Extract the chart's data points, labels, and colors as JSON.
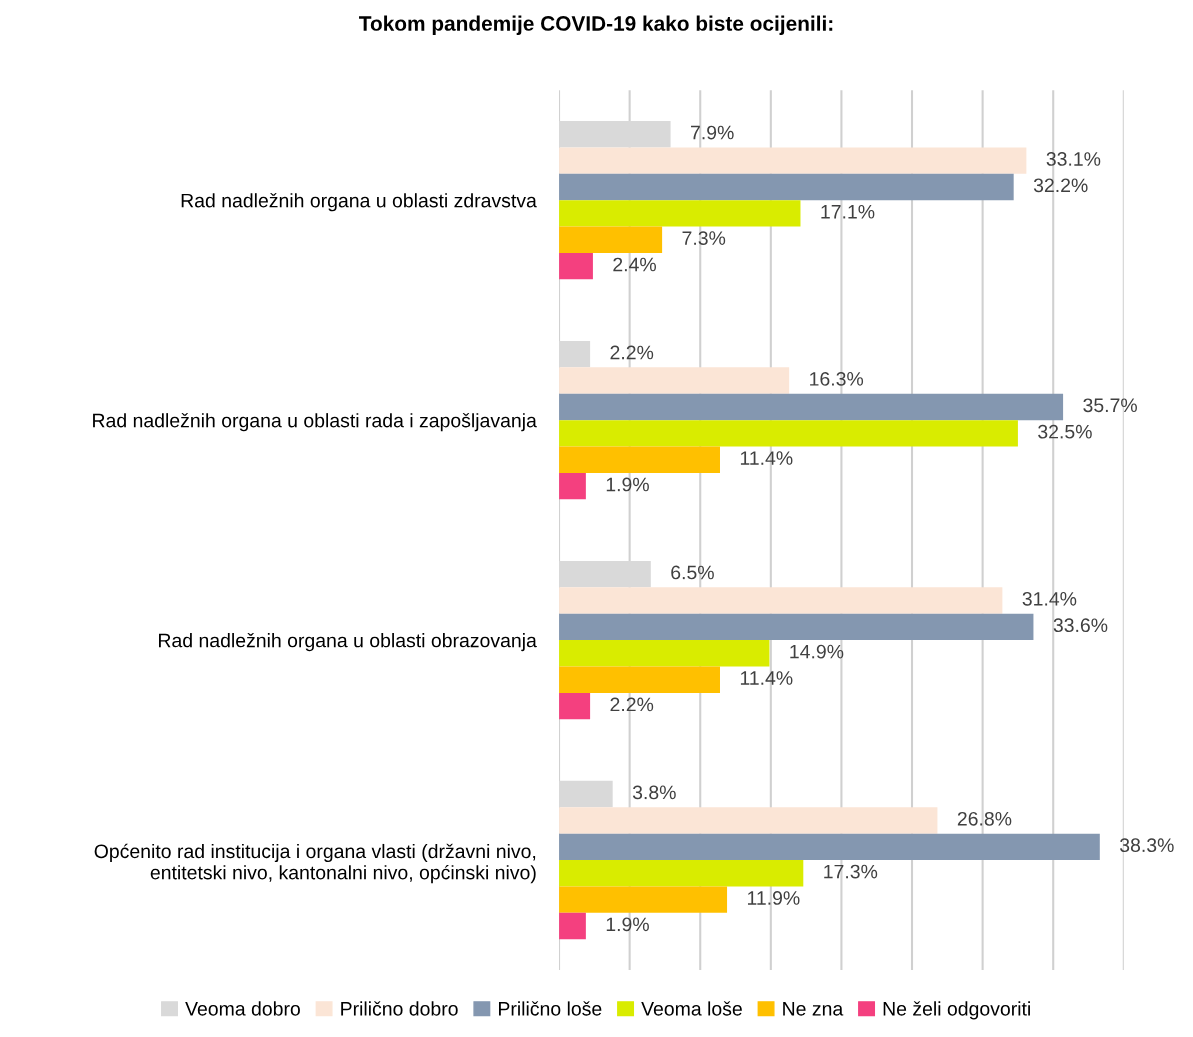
{
  "chart_data": {
    "type": "bar",
    "orientation": "horizontal",
    "title": "Tokom pandemije COVID-19 kako biste ocijenili:",
    "categories": [
      "Rad nadležnih organa u oblasti zdravstva",
      "Rad nadležnih organa u oblasti rada i zapošljavanja",
      "Rad nadležnih organa u oblasti obrazovanja",
      "Općenito rad institucija i organa vlasti (državni nivo, entitetski nivo, kantonalni nivo, općinski nivo)"
    ],
    "series": [
      {
        "name": "Veoma dobro",
        "color": "#d9d9d9",
        "values": [
          7.9,
          2.2,
          6.5,
          3.8
        ],
        "value_labels": [
          "7.9%",
          "2.2%",
          "6.5%",
          "3.8%"
        ]
      },
      {
        "name": "Prilično dobro",
        "color": "#fbe5d6",
        "values": [
          33.1,
          16.3,
          31.4,
          26.8
        ],
        "value_labels": [
          "33.1%",
          "16.3%",
          "31.4%",
          "26.8%"
        ]
      },
      {
        "name": "Prilično loše",
        "color": "#8497b0",
        "values": [
          32.2,
          35.7,
          33.6,
          38.3
        ],
        "value_labels": [
          "32.2%",
          "35.7%",
          "33.6%",
          "38.3%"
        ]
      },
      {
        "name": "Veoma loše",
        "color": "#d9ec00",
        "values": [
          17.1,
          32.5,
          14.9,
          17.3
        ],
        "value_labels": [
          "17.1%",
          "32.5%",
          "14.9%",
          "17.3%"
        ]
      },
      {
        "name": "Ne zna",
        "color": "#ffc000",
        "values": [
          7.3,
          11.4,
          11.4,
          11.9
        ],
        "value_labels": [
          "7.3%",
          "11.4%",
          "11.4%",
          "11.9%"
        ]
      },
      {
        "name": "Ne želi odgovoriti",
        "color": "#f4407f",
        "values": [
          2.4,
          1.9,
          2.2,
          1.9
        ],
        "value_labels": [
          "2.4%",
          "1.9%",
          "2.2%",
          "1.9%"
        ]
      }
    ],
    "xlim": [
      0,
      40
    ],
    "xticks": [
      {
        "value": 0,
        "label": null
      },
      {
        "value": 5,
        "label": null
      },
      {
        "value": 10,
        "label": null
      },
      {
        "value": 15,
        "label": null
      },
      {
        "value": 20,
        "label": null
      },
      {
        "value": 25,
        "label": null
      },
      {
        "value": 30,
        "label": null
      },
      {
        "value": 35,
        "label": null
      },
      {
        "value": 40,
        "label": null
      }
    ],
    "grid": "x",
    "legend": "bottom",
    "tick_labels": "y"
  }
}
